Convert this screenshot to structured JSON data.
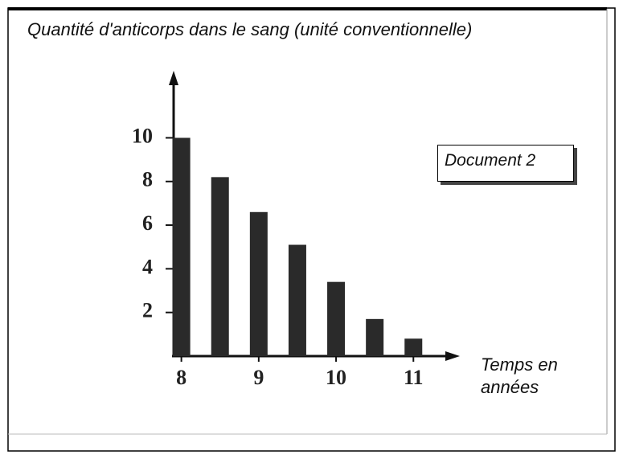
{
  "chart_data": {
    "type": "bar",
    "title": "Quantité d'anticorps dans le sang (unité conventionnelle)",
    "x_label": "Temps en années",
    "annotation": "Document 2",
    "x": [
      8,
      8.5,
      9,
      9.5,
      10,
      10.5,
      11
    ],
    "values": [
      10,
      8.2,
      6.6,
      5.1,
      3.4,
      1.7,
      0.8
    ],
    "color": "#2a2a2a",
    "xlim": [
      7.9,
      11.6
    ],
    "xticks": [
      8,
      9,
      10,
      11
    ],
    "ylim": [
      0,
      13
    ],
    "yticks": [
      2,
      4,
      6,
      8,
      10
    ]
  }
}
